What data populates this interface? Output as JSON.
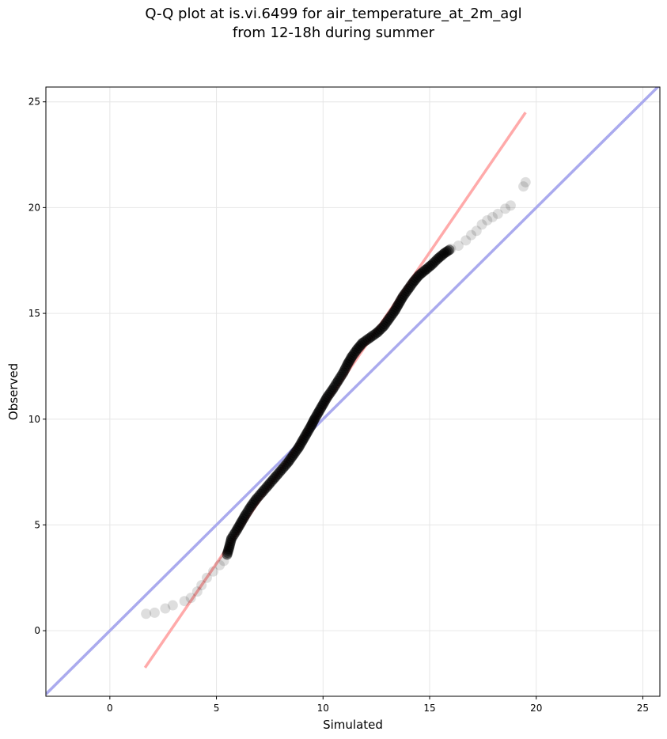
{
  "chart_data": {
    "type": "scatter",
    "title": "Q-Q plot at is.vi.6499 for air_temperature_at_2m_agl",
    "subtitle": "from 12-18h during summer",
    "xlabel": "Simulated",
    "ylabel": "Observed",
    "xlim": [
      -3.0,
      25.8
    ],
    "ylim": [
      -3.1,
      25.7
    ],
    "xticks": [
      0,
      5,
      10,
      15,
      20,
      25
    ],
    "yticks": [
      0,
      5,
      10,
      15,
      20,
      25
    ],
    "grid": true,
    "reference_lines": [
      {
        "x": [
          -3.0,
          25.8
        ],
        "y": [
          -3.0,
          25.8
        ],
        "color": "#aaaaee"
      },
      {
        "x": [
          1.65,
          19.5
        ],
        "y": [
          -1.75,
          24.5
        ],
        "color": "#ffaaaa"
      }
    ],
    "quantiles": [
      [
        1.7,
        0.8
      ],
      [
        2.1,
        0.85
      ],
      [
        2.6,
        1.05
      ],
      [
        2.95,
        1.2
      ],
      [
        3.5,
        1.4
      ],
      [
        3.8,
        1.55
      ],
      [
        4.1,
        1.85
      ],
      [
        4.3,
        2.15
      ],
      [
        4.55,
        2.5
      ],
      [
        4.85,
        2.8
      ],
      [
        5.15,
        3.1
      ],
      [
        5.35,
        3.3
      ],
      [
        5.5,
        3.6
      ],
      [
        5.6,
        3.95
      ],
      [
        5.7,
        4.35
      ],
      [
        5.95,
        4.75
      ],
      [
        6.15,
        5.1
      ],
      [
        6.35,
        5.45
      ],
      [
        6.6,
        5.85
      ],
      [
        6.85,
        6.2
      ],
      [
        7.15,
        6.55
      ],
      [
        7.45,
        6.9
      ],
      [
        7.75,
        7.25
      ],
      [
        8.05,
        7.6
      ],
      [
        8.35,
        7.95
      ],
      [
        8.6,
        8.3
      ],
      [
        8.85,
        8.65
      ],
      [
        9.05,
        9.0
      ],
      [
        9.25,
        9.35
      ],
      [
        9.45,
        9.7
      ],
      [
        9.6,
        10.0
      ],
      [
        9.8,
        10.35
      ],
      [
        10.0,
        10.7
      ],
      [
        10.2,
        11.05
      ],
      [
        10.45,
        11.4
      ],
      [
        10.7,
        11.8
      ],
      [
        10.95,
        12.2
      ],
      [
        11.15,
        12.6
      ],
      [
        11.35,
        12.95
      ],
      [
        11.6,
        13.3
      ],
      [
        11.85,
        13.6
      ],
      [
        12.2,
        13.85
      ],
      [
        12.55,
        14.1
      ],
      [
        12.85,
        14.4
      ],
      [
        13.1,
        14.75
      ],
      [
        13.35,
        15.1
      ],
      [
        13.55,
        15.45
      ],
      [
        13.75,
        15.8
      ],
      [
        14.0,
        16.15
      ],
      [
        14.25,
        16.5
      ],
      [
        14.5,
        16.8
      ],
      [
        14.8,
        17.05
      ],
      [
        15.1,
        17.3
      ],
      [
        15.4,
        17.6
      ],
      [
        15.7,
        17.85
      ],
      [
        16.0,
        18.05
      ],
      [
        16.35,
        18.2
      ],
      [
        16.7,
        18.45
      ],
      [
        16.95,
        18.7
      ],
      [
        17.2,
        18.9
      ],
      [
        17.45,
        19.2
      ],
      [
        17.7,
        19.4
      ],
      [
        17.95,
        19.55
      ],
      [
        18.2,
        19.7
      ],
      [
        18.55,
        19.95
      ],
      [
        18.8,
        20.1
      ],
      [
        19.4,
        21.0
      ],
      [
        19.5,
        21.2
      ]
    ]
  }
}
